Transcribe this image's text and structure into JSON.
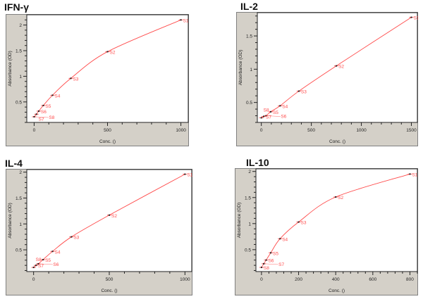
{
  "chart_data": [
    {
      "type": "scatter",
      "title": "IFN-γ",
      "xlabel": "Conc. ()",
      "ylabel": "Absorbance (OD)",
      "xlim": [
        -50,
        1050
      ],
      "ylim": [
        0.1,
        2.2
      ],
      "xticks": [
        0,
        500,
        1000
      ],
      "yticks": [
        0.5,
        1,
        1.5,
        2
      ],
      "ytick_labels": [
        "0.5",
        "1",
        "1.5",
        "2"
      ],
      "fit_line": true,
      "color": "#ff4a4a",
      "points": [
        {
          "label": "S1",
          "x": 1000,
          "y": 2.1
        },
        {
          "label": "S2",
          "x": 500,
          "y": 1.48
        },
        {
          "label": "S3",
          "x": 250,
          "y": 0.96
        },
        {
          "label": "S4",
          "x": 125,
          "y": 0.63
        },
        {
          "label": "S5",
          "x": 62.5,
          "y": 0.43
        },
        {
          "label": "S6",
          "x": 31.25,
          "y": 0.32
        },
        {
          "label": "S7",
          "x": 15.6,
          "y": 0.26
        },
        {
          "label": "S8",
          "x": 0,
          "y": 0.21
        }
      ]
    },
    {
      "type": "scatter",
      "title": "IL-2",
      "xlabel": "Conc. ()",
      "ylabel": "Absorbance (OD)",
      "xlim": [
        -40,
        1560
      ],
      "ylim": [
        0.2,
        1.85
      ],
      "xticks": [
        0,
        500,
        1000,
        1500
      ],
      "yticks": [
        0.5,
        1,
        1.5
      ],
      "ytick_labels": [
        "0.5",
        "1",
        "1.5"
      ],
      "fit_line": true,
      "color": "#ff4a4a",
      "points": [
        {
          "label": "S1",
          "x": 1500,
          "y": 1.78
        },
        {
          "label": "S2",
          "x": 750,
          "y": 1.05
        },
        {
          "label": "S3",
          "x": 375,
          "y": 0.67
        },
        {
          "label": "S4",
          "x": 187.5,
          "y": 0.45
        },
        {
          "label": "S5",
          "x": 93.75,
          "y": 0.36
        },
        {
          "label": "S6",
          "x": 46.9,
          "y": 0.3
        },
        {
          "label": "S7",
          "x": 23.4,
          "y": 0.29
        },
        {
          "label": "S8",
          "x": 0,
          "y": 0.27
        }
      ]
    },
    {
      "type": "scatter",
      "title": "IL-4",
      "xlabel": "Conc. ()",
      "ylabel": "Absorbance (OD)",
      "xlim": [
        -45,
        1045
      ],
      "ylim": [
        0.08,
        2.05
      ],
      "xticks": [
        0,
        500,
        1000
      ],
      "yticks": [
        0.5,
        1,
        1.5,
        2
      ],
      "ytick_labels": [
        "0.5",
        "1",
        "1.5",
        "2"
      ],
      "fit_line": true,
      "color": "#ff4a4a",
      "points": [
        {
          "label": "S1",
          "x": 1000,
          "y": 1.96
        },
        {
          "label": "S2",
          "x": 500,
          "y": 1.17
        },
        {
          "label": "S3",
          "x": 250,
          "y": 0.75
        },
        {
          "label": "S4",
          "x": 125,
          "y": 0.47
        },
        {
          "label": "S5",
          "x": 62.5,
          "y": 0.31
        },
        {
          "label": "S6",
          "x": 31.25,
          "y": 0.23
        },
        {
          "label": "S7",
          "x": 15.6,
          "y": 0.2
        },
        {
          "label": "S8",
          "x": 0,
          "y": 0.16
        }
      ]
    },
    {
      "type": "scatter",
      "title": "IL-10",
      "xlabel": "Conc. ()",
      "ylabel": "Absorbance (OD)",
      "xlim": [
        -30,
        840
      ],
      "ylim": [
        0.08,
        2.05
      ],
      "xticks": [
        0,
        200,
        400,
        600,
        800
      ],
      "yticks": [
        0.5,
        1,
        1.5,
        2
      ],
      "ytick_labels": [
        "0.5",
        "1",
        "1.5",
        "2"
      ],
      "fit_line": true,
      "color": "#ff4a4a",
      "points": [
        {
          "label": "S1",
          "x": 800,
          "y": 1.95
        },
        {
          "label": "S2",
          "x": 400,
          "y": 1.51
        },
        {
          "label": "S3",
          "x": 200,
          "y": 1.03
        },
        {
          "label": "S4",
          "x": 100,
          "y": 0.71
        },
        {
          "label": "S5",
          "x": 50,
          "y": 0.44
        },
        {
          "label": "S6",
          "x": 25,
          "y": 0.3
        },
        {
          "label": "S7",
          "x": 12.5,
          "y": 0.23
        },
        {
          "label": "S8",
          "x": 0,
          "y": 0.16
        }
      ]
    }
  ]
}
